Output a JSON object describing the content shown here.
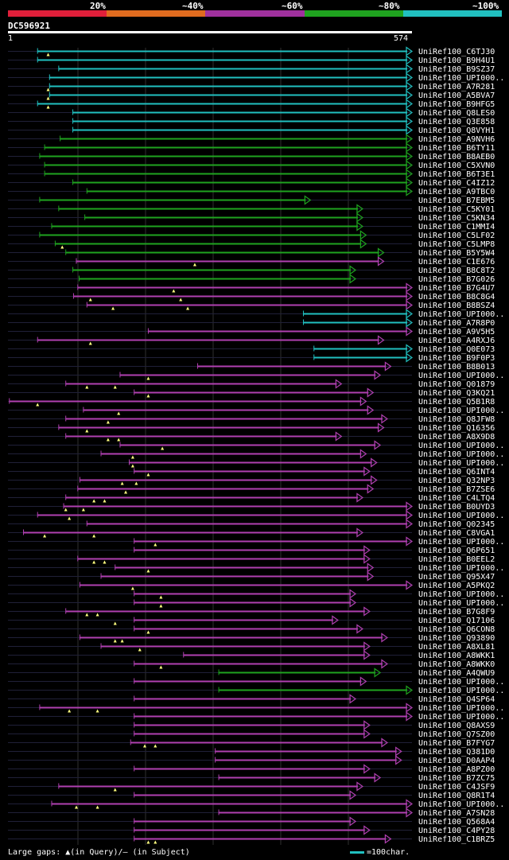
{
  "legend": {
    "labels": [
      "20%",
      "~40%",
      "~60%",
      "~80%",
      "~100%"
    ],
    "colors": [
      "#e01f3a",
      "#e06b1f",
      "#a0319e",
      "#1fa31f",
      "#21c0c0"
    ]
  },
  "query": {
    "id": "DC596921",
    "start": "1",
    "end": "574",
    "length": 574
  },
  "colors": {
    "cyan": "#21c0c0",
    "green": "#1fa31f",
    "magenta": "#b040b0",
    "dim": "#202038",
    "marker": "#ffff80"
  },
  "footer": {
    "note": "Large gaps: ▲(in Query)/— (in Subject)",
    "key": "=100char."
  },
  "hits": [
    {
      "label": "UniRef100_C6TJ30",
      "color": "cyan",
      "start": 43,
      "end": 574,
      "markers": [
        58
      ]
    },
    {
      "label": "UniRef100_B9H4U1",
      "color": "cyan",
      "start": 43,
      "end": 574,
      "markers": []
    },
    {
      "label": "UniRef100_B9SZ37",
      "color": "cyan",
      "start": 73,
      "end": 574,
      "markers": []
    },
    {
      "label": "UniRef100_UPI000..",
      "color": "cyan",
      "start": 60,
      "end": 574,
      "markers": []
    },
    {
      "label": "UniRef100_A7R281",
      "color": "cyan",
      "start": 60,
      "end": 574,
      "markers": [
        58
      ]
    },
    {
      "label": "UniRef100_A5BVA7",
      "color": "cyan",
      "start": 60,
      "end": 574,
      "markers": [
        58
      ]
    },
    {
      "label": "UniRef100_B9HFG5",
      "color": "cyan",
      "start": 43,
      "end": 574,
      "markers": [
        58
      ]
    },
    {
      "label": "UniRef100_Q8LES0",
      "color": "cyan",
      "start": 93,
      "end": 574,
      "markers": []
    },
    {
      "label": "UniRef100_Q3E858",
      "color": "cyan",
      "start": 93,
      "end": 574,
      "markers": []
    },
    {
      "label": "UniRef100_Q8VYH1",
      "color": "cyan",
      "start": 93,
      "end": 574,
      "markers": []
    },
    {
      "label": "UniRef100_A9NVH6",
      "color": "green",
      "start": 75,
      "end": 574,
      "markers": []
    },
    {
      "label": "UniRef100_B6TY11",
      "color": "green",
      "start": 53,
      "end": 574,
      "markers": []
    },
    {
      "label": "UniRef100_B8AEB0",
      "color": "green",
      "start": 46,
      "end": 574,
      "markers": []
    },
    {
      "label": "UniRef100_C5XVN0",
      "color": "green",
      "start": 53,
      "end": 574,
      "markers": []
    },
    {
      "label": "UniRef100_B6T3E1",
      "color": "green",
      "start": 53,
      "end": 574,
      "markers": []
    },
    {
      "label": "UniRef100_C4IZ12",
      "color": "green",
      "start": 93,
      "end": 574,
      "markers": []
    },
    {
      "label": "UniRef100_A9TBC0",
      "color": "green",
      "start": 113,
      "end": 574,
      "markers": []
    },
    {
      "label": "UniRef100_B7EBM5",
      "color": "green",
      "start": 46,
      "end": 430,
      "markers": []
    },
    {
      "label": "UniRef100_C5KY01",
      "color": "green",
      "start": 73,
      "end": 504,
      "markers": []
    },
    {
      "label": "UniRef100_C5KN34",
      "color": "green",
      "start": 110,
      "end": 504,
      "markers": []
    },
    {
      "label": "UniRef100_C1MMI4",
      "color": "green",
      "start": 63,
      "end": 504,
      "markers": []
    },
    {
      "label": "UniRef100_C5LF02",
      "color": "green",
      "start": 46,
      "end": 509,
      "markers": []
    },
    {
      "label": "UniRef100_C5LMP8",
      "color": "green",
      "start": 68,
      "end": 509,
      "markers": [
        78
      ]
    },
    {
      "label": "UniRef100_B5Y5W4",
      "color": "green",
      "start": 83,
      "end": 534,
      "markers": []
    },
    {
      "label": "UniRef100_C1E676",
      "color": "magenta",
      "start": 98,
      "end": 534,
      "markers": [
        266
      ]
    },
    {
      "label": "UniRef100_B8C8T2",
      "color": "green",
      "start": 93,
      "end": 494,
      "markers": []
    },
    {
      "label": "UniRef100_B7G026",
      "color": "green",
      "start": 102,
      "end": 494,
      "markers": []
    },
    {
      "label": "UniRef100_B7G4U7",
      "color": "magenta",
      "start": 100,
      "end": 574,
      "markers": [
        236
      ]
    },
    {
      "label": "UniRef100_B8C8G4",
      "color": "magenta",
      "start": 94,
      "end": 574,
      "markers": [
        118,
        246
      ]
    },
    {
      "label": "UniRef100_B8BSZ4",
      "color": "magenta",
      "start": 113,
      "end": 574,
      "markers": [
        150,
        256
      ]
    },
    {
      "label": "UniRef100_UPI000..",
      "color": "cyan",
      "start": 420,
      "end": 574,
      "markers": []
    },
    {
      "label": "UniRef100_A7R8P0",
      "color": "cyan",
      "start": 420,
      "end": 574,
      "markers": []
    },
    {
      "label": "UniRef100_A9V5H5",
      "color": "magenta",
      "start": 200,
      "end": 574,
      "markers": []
    },
    {
      "label": "UniRef100_A4RXJ6",
      "color": "magenta",
      "start": 43,
      "end": 534,
      "markers": [
        118
      ]
    },
    {
      "label": "UniRef100_Q0E073",
      "color": "cyan",
      "start": 435,
      "end": 574,
      "markers": []
    },
    {
      "label": "UniRef100_B9F0P3",
      "color": "cyan",
      "start": 435,
      "end": 574,
      "markers": []
    },
    {
      "label": "UniRef100_B8B013",
      "color": "magenta",
      "start": 270,
      "end": 544,
      "markers": []
    },
    {
      "label": "UniRef100_UPI000..",
      "color": "magenta",
      "start": 160,
      "end": 529,
      "markers": [
        200
      ]
    },
    {
      "label": "UniRef100_Q01879",
      "color": "magenta",
      "start": 83,
      "end": 474,
      "markers": [
        113,
        153
      ]
    },
    {
      "label": "UniRef100_Q3KQ21",
      "color": "magenta",
      "start": 180,
      "end": 519,
      "markers": [
        200
      ]
    },
    {
      "label": "UniRef100_Q5B1R8",
      "color": "magenta",
      "start": 3,
      "end": 509,
      "markers": [
        43
      ]
    },
    {
      "label": "UniRef100_UPI000..",
      "color": "magenta",
      "start": 108,
      "end": 519,
      "markers": [
        158
      ]
    },
    {
      "label": "UniRef100_Q8JFW8",
      "color": "magenta",
      "start": 83,
      "end": 539,
      "markers": [
        143
      ]
    },
    {
      "label": "UniRef100_Q16356",
      "color": "magenta",
      "start": 73,
      "end": 534,
      "markers": [
        113
      ]
    },
    {
      "label": "UniRef100_A8X9D8",
      "color": "magenta",
      "start": 83,
      "end": 474,
      "markers": [
        143,
        158
      ]
    },
    {
      "label": "UniRef100_UPI000..",
      "color": "magenta",
      "start": 160,
      "end": 529,
      "markers": [
        220
      ]
    },
    {
      "label": "UniRef100_UPI000..",
      "color": "magenta",
      "start": 133,
      "end": 509,
      "markers": [
        178
      ]
    },
    {
      "label": "UniRef100_UPI000..",
      "color": "magenta",
      "start": 173,
      "end": 524,
      "markers": [
        178
      ]
    },
    {
      "label": "UniRef100_Q6INT4",
      "color": "magenta",
      "start": 180,
      "end": 514,
      "markers": [
        200
      ]
    },
    {
      "label": "UniRef100_Q32NP3",
      "color": "magenta",
      "start": 103,
      "end": 524,
      "markers": [
        163,
        183
      ]
    },
    {
      "label": "UniRef100_B7ZSE6",
      "color": "magenta",
      "start": 100,
      "end": 519,
      "markers": [
        168
      ]
    },
    {
      "label": "UniRef100_C4LTQ4",
      "color": "magenta",
      "start": 83,
      "end": 504,
      "markers": [
        123,
        138
      ]
    },
    {
      "label": "UniRef100_B0UYD3",
      "color": "magenta",
      "start": 80,
      "end": 574,
      "markers": [
        83,
        108
      ]
    },
    {
      "label": "UniRef100_UPI000..",
      "color": "magenta",
      "start": 43,
      "end": 574,
      "markers": [
        88
      ]
    },
    {
      "label": "UniRef100_Q02345",
      "color": "magenta",
      "start": 113,
      "end": 574,
      "markers": []
    },
    {
      "label": "UniRef100_C8VGA1",
      "color": "magenta",
      "start": 23,
      "end": 504,
      "markers": [
        53,
        123
      ]
    },
    {
      "label": "UniRef100_UPI000..",
      "color": "magenta",
      "start": 180,
      "end": 574,
      "markers": [
        210
      ]
    },
    {
      "label": "UniRef100_Q6P651",
      "color": "magenta",
      "start": 180,
      "end": 514,
      "markers": []
    },
    {
      "label": "UniRef100_B0EEL2",
      "color": "magenta",
      "start": 100,
      "end": 514,
      "markers": [
        123,
        138
      ]
    },
    {
      "label": "UniRef100_UPI000..",
      "color": "magenta",
      "start": 153,
      "end": 519,
      "markers": [
        200
      ]
    },
    {
      "label": "UniRef100_Q95X47",
      "color": "magenta",
      "start": 133,
      "end": 519,
      "markers": []
    },
    {
      "label": "UniRef100_A5PKQ2",
      "color": "magenta",
      "start": 103,
      "end": 574,
      "markers": [
        178
      ]
    },
    {
      "label": "UniRef100_UPI000..",
      "color": "magenta",
      "start": 180,
      "end": 494,
      "markers": [
        218
      ]
    },
    {
      "label": "UniRef100_UPI000..",
      "color": "magenta",
      "start": 180,
      "end": 494,
      "markers": [
        218
      ]
    },
    {
      "label": "UniRef100_B7G8F9",
      "color": "magenta",
      "start": 83,
      "end": 514,
      "markers": [
        113,
        128
      ]
    },
    {
      "label": "UniRef100_Q17106",
      "color": "magenta",
      "start": 180,
      "end": 469,
      "markers": [
        153
      ]
    },
    {
      "label": "UniRef100_Q6CON8",
      "color": "magenta",
      "start": 180,
      "end": 504,
      "markers": [
        200
      ]
    },
    {
      "label": "UniRef100_Q93890",
      "color": "magenta",
      "start": 103,
      "end": 539,
      "markers": [
        153,
        163
      ]
    },
    {
      "label": "UniRef100_A8XL81",
      "color": "magenta",
      "start": 133,
      "end": 514,
      "markers": [
        188
      ]
    },
    {
      "label": "UniRef100_A8WKK1",
      "color": "magenta",
      "start": 250,
      "end": 514,
      "markers": []
    },
    {
      "label": "UniRef100_A8WKK0",
      "color": "magenta",
      "start": 180,
      "end": 539,
      "markers": [
        218
      ]
    },
    {
      "label": "UniRef100_A4QWU9",
      "color": "green",
      "start": 300,
      "end": 529,
      "markers": []
    },
    {
      "label": "UniRef100_UPI000..",
      "color": "magenta",
      "start": 180,
      "end": 509,
      "markers": []
    },
    {
      "label": "UniRef100_UPI000..",
      "color": "green",
      "start": 300,
      "end": 574,
      "markers": []
    },
    {
      "label": "UniRef100_Q4SP64",
      "color": "magenta",
      "start": 180,
      "end": 494,
      "markers": []
    },
    {
      "label": "UniRef100_UPI000..",
      "color": "magenta",
      "start": 46,
      "end": 574,
      "markers": [
        88,
        128
      ]
    },
    {
      "label": "UniRef100_UPI000..",
      "color": "magenta",
      "start": 180,
      "end": 574,
      "markers": []
    },
    {
      "label": "UniRef100_Q8AXS9",
      "color": "magenta",
      "start": 180,
      "end": 514,
      "markers": []
    },
    {
      "label": "UniRef100_Q7SZ00",
      "color": "magenta",
      "start": 180,
      "end": 514,
      "markers": []
    },
    {
      "label": "UniRef100_B7FYG7",
      "color": "magenta",
      "start": 175,
      "end": 539,
      "markers": [
        195,
        210
      ]
    },
    {
      "label": "UniRef100_Q381D0",
      "color": "magenta",
      "start": 295,
      "end": 559,
      "markers": []
    },
    {
      "label": "UniRef100_D0AAP4",
      "color": "magenta",
      "start": 295,
      "end": 559,
      "markers": []
    },
    {
      "label": "UniRef100_A8PZ00",
      "color": "magenta",
      "start": 180,
      "end": 514,
      "markers": []
    },
    {
      "label": "UniRef100_B7ZC75",
      "color": "magenta",
      "start": 300,
      "end": 529,
      "markers": []
    },
    {
      "label": "UniRef100_C4JSF9",
      "color": "magenta",
      "start": 73,
      "end": 504,
      "markers": [
        153
      ]
    },
    {
      "label": "UniRef100_Q8R1T4",
      "color": "magenta",
      "start": 180,
      "end": 494,
      "markers": []
    },
    {
      "label": "UniRef100_UPI000..",
      "color": "magenta",
      "start": 63,
      "end": 574,
      "markers": [
        98,
        128
      ]
    },
    {
      "label": "UniRef100_A7SN28",
      "color": "magenta",
      "start": 300,
      "end": 574,
      "markers": []
    },
    {
      "label": "UniRef100_Q568A4",
      "color": "magenta",
      "start": 180,
      "end": 494,
      "markers": []
    },
    {
      "label": "UniRef100_C4PY28",
      "color": "magenta",
      "start": 180,
      "end": 514,
      "markers": []
    },
    {
      "label": "UniRef100_C1BRZ5",
      "color": "magenta",
      "start": 180,
      "end": 544,
      "markers": [
        200,
        210
      ]
    }
  ]
}
